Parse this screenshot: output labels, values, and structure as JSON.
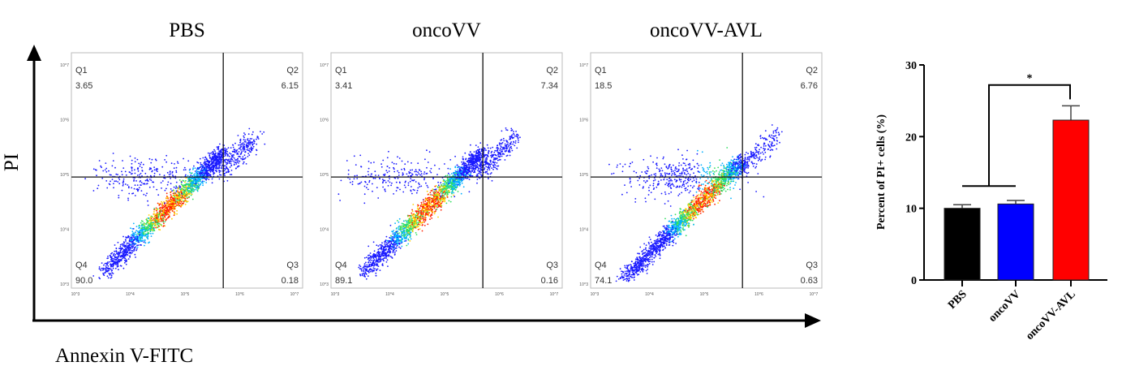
{
  "chart_data": [
    {
      "type": "scatter",
      "panels": [
        {
          "title": "PBS",
          "quadrants": {
            "Q1": "3.65",
            "Q2": "6.15",
            "Q3": "0.18",
            "Q4": "90.0"
          }
        },
        {
          "title": "oncoVV",
          "quadrants": {
            "Q1": "3.41",
            "Q2": "7.34",
            "Q3": "0.16",
            "Q4": "89.1"
          }
        },
        {
          "title": "oncoVV-AVL",
          "quadrants": {
            "Q1": "18.5",
            "Q2": "6.76",
            "Q3": "0.63",
            "Q4": "74.1"
          }
        }
      ],
      "xlabel": "Annexin V-FITC",
      "ylabel": "PI",
      "x_scale": "log",
      "y_scale": "log",
      "xlim": [
        1000,
        10000000
      ],
      "ylim": [
        1000,
        10000000
      ],
      "tick_labels": [
        "10^3",
        "10^4",
        "10^5",
        "10^6",
        "10^7"
      ],
      "gate": {
        "x": 500000,
        "y": 90000
      },
      "colormap": "density (blue-green-yellow-red)"
    },
    {
      "type": "bar",
      "categories": [
        "PBS",
        "oncoVV",
        "oncoVV-AVL"
      ],
      "values": [
        10.0,
        10.6,
        22.3
      ],
      "errors": [
        0.5,
        0.5,
        2.0
      ],
      "colors": [
        "#000000",
        "#0000ff",
        "#ff0000"
      ],
      "ylabel": "Percent of  PI+ cells (%)",
      "ylim": [
        0,
        30
      ],
      "yticks": [
        "0",
        "10",
        "20",
        "30"
      ],
      "annotation": "*"
    }
  ]
}
